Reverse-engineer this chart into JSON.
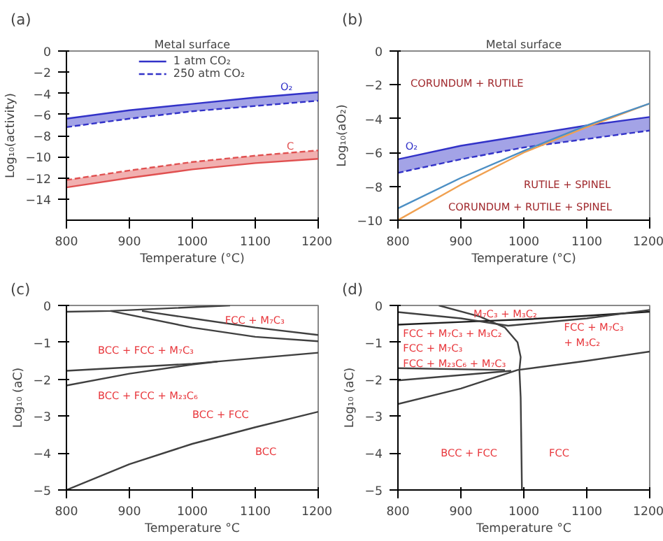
{
  "chart_data": [
    {
      "type": "line",
      "title": "Metal surface",
      "xlabel": "Temperature (°C)",
      "ylabel": "Log₁₀(activity)",
      "xlim": [
        800,
        1200
      ],
      "ylim": [
        -16,
        0
      ],
      "xticks": [
        800,
        900,
        1000,
        1100,
        1200
      ],
      "yticks": [
        -14,
        -12,
        -10,
        -8,
        -6,
        -4,
        -2,
        0
      ],
      "x": [
        800,
        900,
        1000,
        1100,
        1200
      ],
      "legend": "top",
      "series": [
        {
          "name": "1 atm CO₂",
          "color": "#3232c8",
          "line_style": "solid",
          "values": [
            -6.4,
            -5.6,
            -5.0,
            -4.4,
            -3.9
          ],
          "lower": [
            -7.2,
            -6.4,
            -5.7,
            -5.2,
            -4.7
          ],
          "upper": [
            -6.4,
            -5.6,
            -5.0,
            -4.4,
            -3.9
          ]
        },
        {
          "name": "250 atm CO₂",
          "color": "#3232c8",
          "line_style": "dashed",
          "values": [
            -7.2,
            -6.4,
            -5.7,
            -5.2,
            -4.7
          ]
        },
        {
          "color": "#e05050",
          "line_style": "solid",
          "values": [
            -12.9,
            -12.0,
            -11.2,
            -10.6,
            -10.2
          ],
          "lower": [
            -12.9,
            -12.0,
            -11.2,
            -10.6,
            -10.2
          ],
          "upper": [
            -12.2,
            -11.3,
            -10.5,
            -9.9,
            -9.4
          ]
        },
        {
          "color": "#e05050",
          "line_style": "dashed",
          "values": [
            -12.2,
            -11.3,
            -10.5,
            -9.9,
            -9.4
          ]
        }
      ],
      "annotations": [
        "(a)",
        "O₂",
        "C"
      ]
    },
    {
      "type": "line",
      "title": "Metal surface",
      "xlabel": "Temperature (°C)",
      "ylabel": "Log₁₀(aO₂)",
      "xlim": [
        800,
        1200
      ],
      "ylim": [
        -10,
        0
      ],
      "xticks": [
        800,
        900,
        1000,
        1100,
        1200
      ],
      "yticks": [
        -10,
        -8,
        -6,
        -4,
        -2,
        0
      ],
      "x": [
        800,
        900,
        1000,
        1100,
        1200
      ],
      "series": [
        {
          "color": "#3232c8",
          "line_style": "solid",
          "values": [
            -6.4,
            -5.6,
            -5.0,
            -4.4,
            -3.9
          ],
          "lower": [
            -7.2,
            -6.4,
            -5.7,
            -5.2,
            -4.7
          ],
          "upper": [
            -6.4,
            -5.6,
            -5.0,
            -4.4,
            -3.9
          ]
        },
        {
          "color": "#3232c8",
          "line_style": "dashed",
          "values": [
            -7.2,
            -6.4,
            -5.7,
            -5.2,
            -4.7
          ]
        },
        {
          "color": "#f0a050",
          "line_style": "solid",
          "values": [
            -10.0,
            -7.9,
            -6.0,
            -4.5,
            -3.1
          ]
        },
        {
          "color": "#4c8fc4",
          "line_style": "solid",
          "values": [
            -9.3,
            -7.5,
            -5.9,
            -4.4,
            -3.1
          ]
        }
      ],
      "annotations": [
        "(b)",
        "O₂",
        "CORUNDUM + RUTILE",
        "RUTILE + SPINEL",
        "CORUNDUM + RUTILE + SPINEL"
      ]
    },
    {
      "type": "line",
      "xlabel": "Temperature °C",
      "ylabel": "Log₁₀ (aC)",
      "xlim": [
        800,
        1200
      ],
      "ylim": [
        -5,
        0
      ],
      "xticks": [
        800,
        900,
        1000,
        1100,
        1200
      ],
      "yticks": [
        -5,
        -4,
        -3,
        -2,
        -1,
        0
      ],
      "series": [
        {
          "color": "#404040",
          "x": [
            800,
            870,
            1060
          ],
          "values": [
            -0.17,
            -0.15,
            0
          ]
        },
        {
          "color": "#404040",
          "x": [
            870,
            1000,
            1100,
            1200
          ],
          "values": [
            -0.15,
            -0.6,
            -0.85,
            -0.97
          ]
        },
        {
          "color": "#404040",
          "x": [
            920,
            1000,
            1100,
            1200
          ],
          "values": [
            -0.15,
            -0.35,
            -0.6,
            -0.8
          ]
        },
        {
          "color": "#404040",
          "x": [
            800,
            1000,
            1200
          ],
          "values": [
            -1.77,
            -1.58,
            -1.28
          ]
        },
        {
          "color": "#404040",
          "x": [
            800,
            900,
            1000,
            1040
          ],
          "values": [
            -2.17,
            -1.85,
            -1.6,
            -1.52
          ]
        },
        {
          "color": "#404040",
          "x": [
            800,
            900,
            1000,
            1100,
            1200
          ],
          "values": [
            -5,
            -4.3,
            -3.75,
            -3.3,
            -2.88
          ]
        }
      ],
      "annotations": [
        "(c)",
        "FCC + M₇C₃",
        "BCC + FCC + M₇C₃",
        "BCC + FCC + M₂₃C₆",
        "BCC + FCC",
        "BCC"
      ]
    },
    {
      "type": "line",
      "xlabel": "Temperature °C",
      "ylabel": "Log₁₀ (aC)",
      "xlim": [
        800,
        1200
      ],
      "ylim": [
        -5,
        0
      ],
      "xticks": [
        800,
        900,
        1000,
        1100,
        1200
      ],
      "yticks": [
        -5,
        -4,
        -3,
        -2,
        -1,
        0
      ],
      "series": [
        {
          "color": "#404040",
          "x": [
            865,
            930,
            970,
            990,
            995,
            993,
            995,
            997
          ],
          "values": [
            0,
            -0.3,
            -0.6,
            -1.0,
            -1.4,
            -1.75,
            -2.5,
            -5
          ]
        },
        {
          "color": "#202020",
          "x": [
            800,
            940,
            1000,
            1100,
            1200
          ],
          "values": [
            -0.52,
            -0.42,
            -0.38,
            -0.28,
            -0.17
          ]
        },
        {
          "color": "#404040",
          "x": [
            800,
            900,
            975,
            1100,
            1200
          ],
          "values": [
            -0.18,
            -0.35,
            -0.55,
            -0.35,
            -0.12
          ]
        },
        {
          "color": "#404040",
          "x": [
            800,
            970
          ],
          "values": [
            -1.7,
            -1.75
          ]
        },
        {
          "color": "#404040",
          "x": [
            800,
            980
          ],
          "values": [
            -2.03,
            -1.77
          ]
        },
        {
          "color": "#404040",
          "x": [
            800,
            900,
            990,
            1100,
            1200
          ],
          "values": [
            -2.67,
            -2.25,
            -1.75,
            -1.5,
            -1.25
          ]
        }
      ],
      "annotations": [
        "(d)",
        "M₇C₃ + M₃C₂",
        "FCC + M₇C₃ + M₃C₂",
        "FCC + M₇C₃",
        "FCC + M₂₃C₆ +  M₇C₃",
        "FCC + M₇C₃\n+ M₃C₂",
        "BCC + FCC",
        "FCC"
      ]
    }
  ]
}
